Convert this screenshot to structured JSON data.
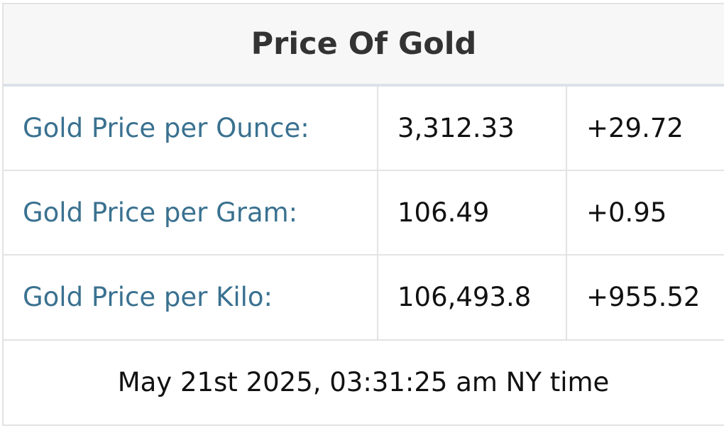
{
  "header": {
    "title": "Price Of Gold"
  },
  "table": {
    "rows": [
      [
        "Gold Price per Ounce:",
        "3,312.33",
        "+29.72"
      ],
      [
        "Gold Price per Gram:",
        "106.49",
        "+0.95"
      ],
      [
        "Gold Price per Kilo:",
        "106,493.8",
        "+955.52"
      ]
    ]
  },
  "footer": {
    "timestamp": "May 21st 2025, 03:31:25 am NY time"
  }
}
